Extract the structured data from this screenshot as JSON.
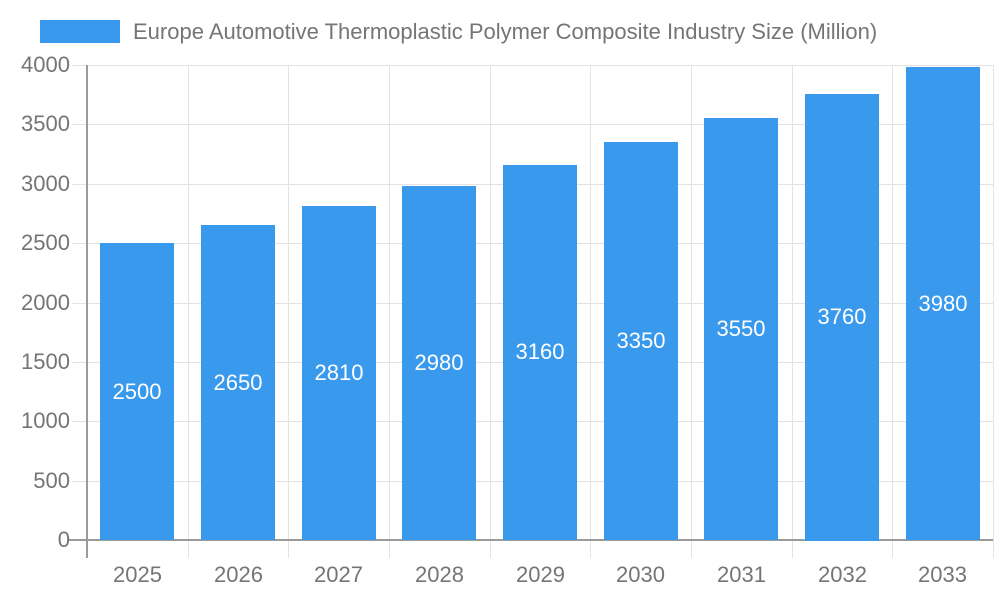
{
  "chart_data": {
    "type": "bar",
    "title": "Europe Automotive Thermoplastic Polymer Composite Industry Size (Million)",
    "categories": [
      "2025",
      "2026",
      "2027",
      "2028",
      "2029",
      "2030",
      "2031",
      "2032",
      "2033"
    ],
    "values": [
      2500,
      2650,
      2810,
      2980,
      3160,
      3350,
      3550,
      3760,
      3980
    ],
    "xlabel": "",
    "ylabel": "",
    "ylim": [
      0,
      4000
    ],
    "yticks": [
      0,
      500,
      1000,
      1500,
      2000,
      2500,
      3000,
      3500,
      4000
    ],
    "grid": true,
    "legend_position": "top-left",
    "value_labels": "inside-center"
  },
  "colors": {
    "bar": "#3999EC",
    "grid": "#e3e3e3",
    "axis": "#9b9b9b",
    "text": "#757575",
    "value_label": "#ffffff",
    "background": "#ffffff"
  }
}
